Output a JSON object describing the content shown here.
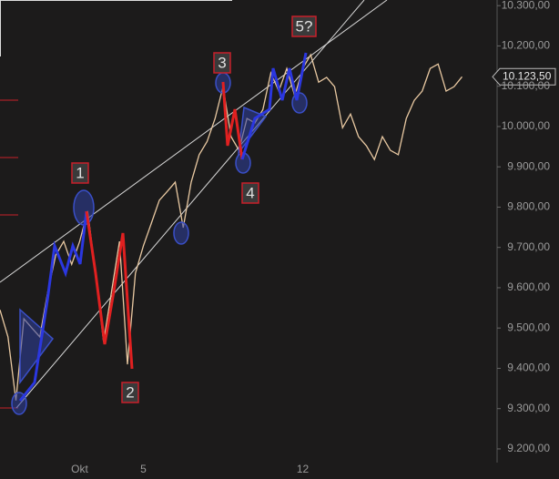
{
  "chart_data": {
    "type": "line",
    "categories": [
      null,
      null,
      null,
      null,
      null,
      null,
      null,
      null,
      null,
      null,
      "Okt",
      null,
      null,
      null,
      null,
      null,
      null,
      null,
      "5",
      null,
      null,
      null,
      null,
      null,
      null,
      null,
      null,
      null,
      null,
      null,
      null,
      null,
      null,
      null,
      null,
      null,
      null,
      null,
      "12",
      null,
      null,
      null,
      null,
      null,
      null,
      null,
      null,
      null,
      null,
      null,
      null,
      null,
      null,
      null,
      null,
      null,
      null,
      null,
      null
    ],
    "values": [
      9545,
      9478,
      9320,
      9523,
      9500,
      9478,
      9590,
      9681,
      9715,
      9658,
      9715,
      9790,
      9636,
      9466,
      9590,
      9715,
      9410,
      9636,
      9704,
      9760,
      9817,
      9839,
      9862,
      9749,
      9862,
      9930,
      9963,
      10020,
      10099,
      9975,
      9941,
      10020,
      10009,
      10042,
      10133,
      10088,
      10144,
      10076,
      10144,
      10178,
      10110,
      10122,
      10099,
      9997,
      10031,
      9975,
      9952,
      9918,
      9975,
      9941,
      9930,
      10020,
      10065,
      10088,
      10144,
      10155,
      10088,
      10099,
      10123.5
    ],
    "color": "#e9c9a2",
    "ylim": [
      9166,
      10314
    ],
    "yticks": [
      {
        "value": 9200,
        "label": "9.200,00"
      },
      {
        "value": 9300,
        "label": "9.300,00"
      },
      {
        "value": 9400,
        "label": "9.400,00"
      },
      {
        "value": 9500,
        "label": "9.500,00"
      },
      {
        "value": 9600,
        "label": "9.600,00"
      },
      {
        "value": 9700,
        "label": "9.700,00"
      },
      {
        "value": 9800,
        "label": "9.800,00"
      },
      {
        "value": 9900,
        "label": "9.900,00"
      },
      {
        "value": 10000,
        "label": "10.000,00"
      },
      {
        "value": 10100,
        "label": "10.100,00"
      },
      {
        "value": 10200,
        "label": "10.200,00"
      },
      {
        "value": 10300,
        "label": "10.300,00"
      }
    ],
    "current_price": {
      "value": 10123.5,
      "label": "10.123,50"
    },
    "annotations": [
      "1",
      "2",
      "3",
      "4",
      "5?"
    ]
  }
}
